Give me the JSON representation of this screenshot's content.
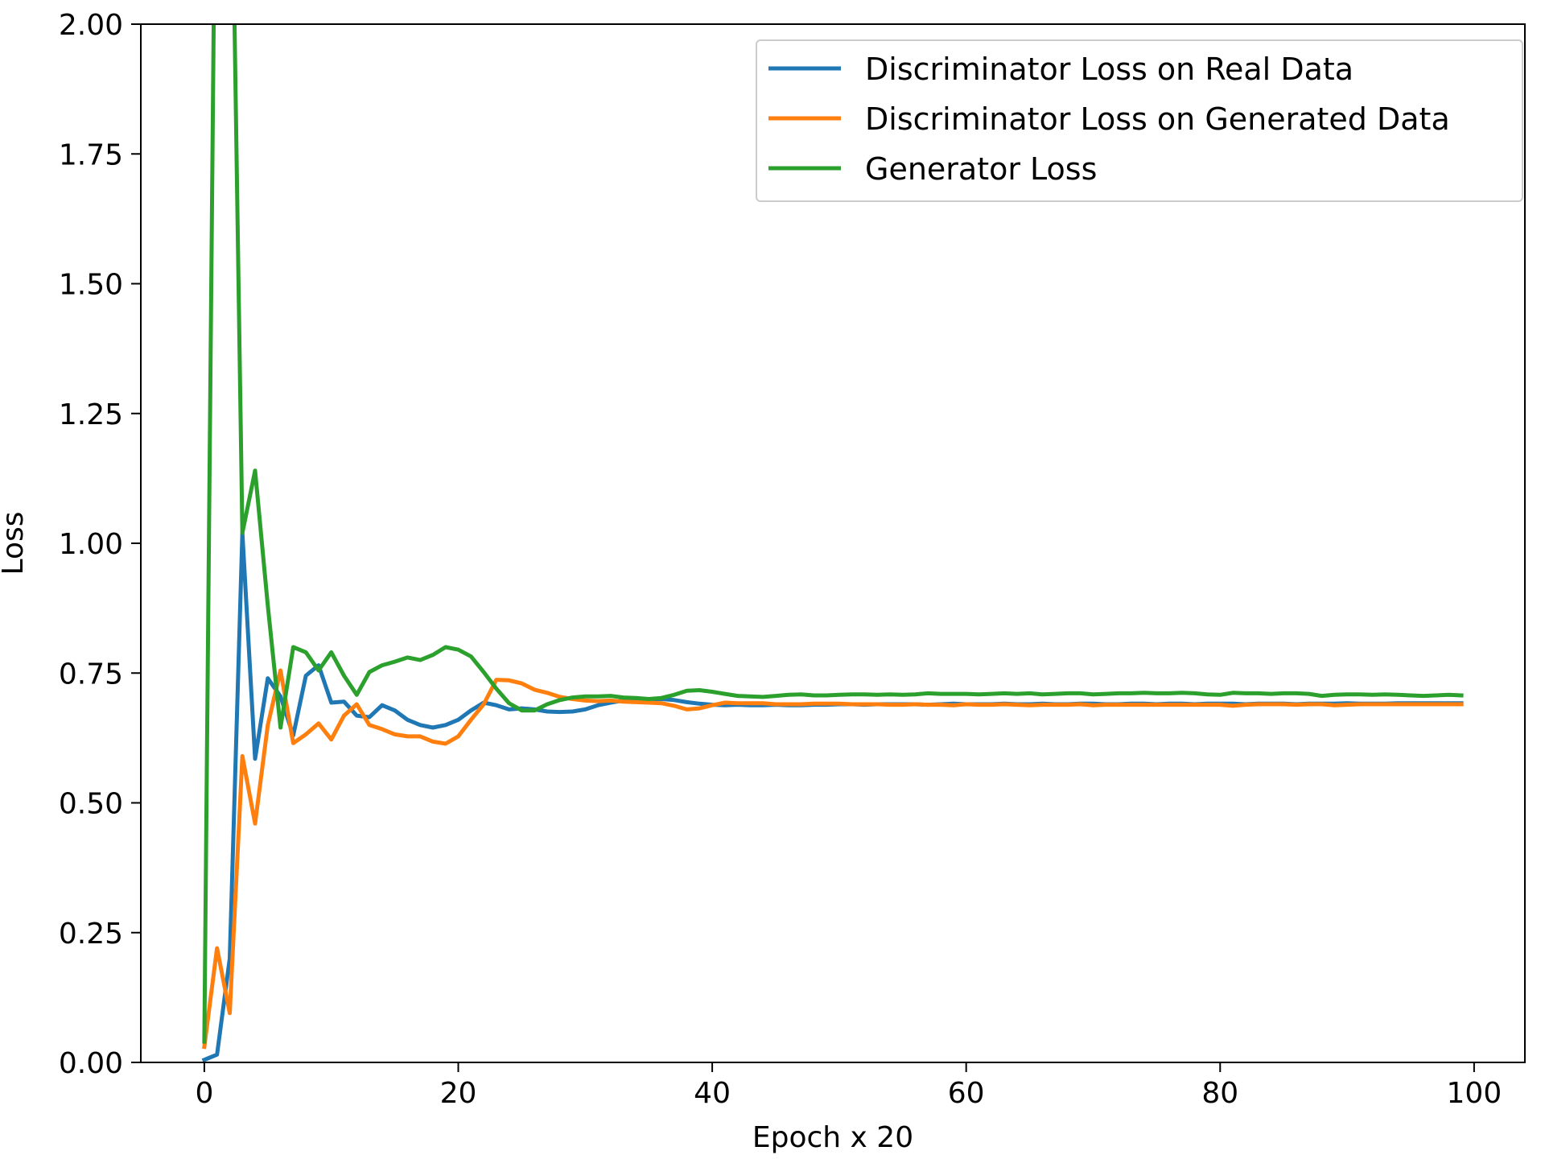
{
  "chart_data": {
    "type": "line",
    "title": "",
    "xlabel": "Epoch x 20",
    "ylabel": "Loss",
    "xlim": [
      -5,
      104
    ],
    "ylim": [
      0,
      2.0
    ],
    "xticks": [
      0,
      20,
      40,
      60,
      80,
      100
    ],
    "xtick_labels": [
      "0",
      "20",
      "40",
      "60",
      "80",
      "100"
    ],
    "yticks": [
      0,
      0.25,
      0.5,
      0.75,
      1.0,
      1.25,
      1.5,
      1.75,
      2.0
    ],
    "ytick_labels": [
      "0.00",
      "0.25",
      "0.50",
      "0.75",
      "1.00",
      "1.25",
      "1.50",
      "1.75",
      "2.00"
    ],
    "grid": false,
    "legend_position": "top-right",
    "series": [
      {
        "name": "Discriminator Loss on Real Data",
        "color": "#1f77b4",
        "x": [
          0,
          1,
          2,
          3,
          4,
          5,
          6,
          7,
          8,
          9,
          10,
          11,
          12,
          13,
          14,
          15,
          16,
          17,
          18,
          19,
          20,
          21,
          22,
          23,
          24,
          25,
          26,
          27,
          28,
          29,
          30,
          31,
          32,
          33,
          34,
          35,
          36,
          37,
          38,
          39,
          40,
          41,
          42,
          43,
          44,
          45,
          46,
          47,
          48,
          49,
          50,
          51,
          52,
          53,
          54,
          55,
          56,
          57,
          58,
          59,
          60,
          61,
          62,
          63,
          64,
          65,
          66,
          67,
          68,
          69,
          70,
          71,
          72,
          73,
          74,
          75,
          76,
          77,
          78,
          79,
          80,
          81,
          82,
          83,
          84,
          85,
          86,
          87,
          88,
          89,
          90,
          91,
          92,
          93,
          94,
          95,
          96,
          97,
          98,
          99
        ],
        "values": [
          0.005,
          0.015,
          0.2,
          1.02,
          0.585,
          0.74,
          0.705,
          0.63,
          0.745,
          0.765,
          0.693,
          0.695,
          0.668,
          0.665,
          0.688,
          0.678,
          0.66,
          0.65,
          0.645,
          0.65,
          0.66,
          0.678,
          0.693,
          0.688,
          0.68,
          0.682,
          0.68,
          0.676,
          0.675,
          0.676,
          0.68,
          0.688,
          0.693,
          0.697,
          0.698,
          0.699,
          0.7,
          0.698,
          0.694,
          0.691,
          0.689,
          0.688,
          0.689,
          0.688,
          0.688,
          0.689,
          0.688,
          0.688,
          0.689,
          0.689,
          0.69,
          0.69,
          0.689,
          0.69,
          0.69,
          0.69,
          0.69,
          0.689,
          0.69,
          0.691,
          0.69,
          0.69,
          0.69,
          0.691,
          0.69,
          0.69,
          0.691,
          0.69,
          0.69,
          0.691,
          0.691,
          0.69,
          0.69,
          0.691,
          0.691,
          0.69,
          0.691,
          0.691,
          0.69,
          0.691,
          0.691,
          0.691,
          0.69,
          0.691,
          0.691,
          0.691,
          0.69,
          0.691,
          0.691,
          0.691,
          0.692,
          0.691,
          0.691,
          0.691,
          0.692,
          0.692,
          0.692,
          0.692,
          0.692,
          0.692
        ]
      },
      {
        "name": "Discriminator Loss on Generated Data",
        "color": "#ff7f0e",
        "x": [
          0,
          1,
          2,
          3,
          4,
          5,
          6,
          7,
          8,
          9,
          10,
          11,
          12,
          13,
          14,
          15,
          16,
          17,
          18,
          19,
          20,
          21,
          22,
          23,
          24,
          25,
          26,
          27,
          28,
          29,
          30,
          31,
          32,
          33,
          34,
          35,
          36,
          37,
          38,
          39,
          40,
          41,
          42,
          43,
          44,
          45,
          46,
          47,
          48,
          49,
          50,
          51,
          52,
          53,
          54,
          55,
          56,
          57,
          58,
          59,
          60,
          61,
          62,
          63,
          64,
          65,
          66,
          67,
          68,
          69,
          70,
          71,
          72,
          73,
          74,
          75,
          76,
          77,
          78,
          79,
          80,
          81,
          82,
          83,
          84,
          85,
          86,
          87,
          88,
          89,
          90,
          91,
          92,
          93,
          94,
          95,
          96,
          97,
          98,
          99
        ],
        "values": [
          0.03,
          0.22,
          0.095,
          0.59,
          0.46,
          0.65,
          0.755,
          0.615,
          0.632,
          0.653,
          0.622,
          0.668,
          0.69,
          0.65,
          0.642,
          0.632,
          0.628,
          0.628,
          0.618,
          0.614,
          0.628,
          0.66,
          0.69,
          0.737,
          0.736,
          0.73,
          0.718,
          0.712,
          0.704,
          0.7,
          0.697,
          0.696,
          0.697,
          0.695,
          0.694,
          0.693,
          0.692,
          0.687,
          0.68,
          0.682,
          0.688,
          0.693,
          0.692,
          0.692,
          0.692,
          0.69,
          0.69,
          0.69,
          0.691,
          0.691,
          0.691,
          0.69,
          0.69,
          0.69,
          0.689,
          0.689,
          0.69,
          0.689,
          0.689,
          0.688,
          0.69,
          0.689,
          0.689,
          0.69,
          0.689,
          0.688,
          0.689,
          0.689,
          0.689,
          0.69,
          0.688,
          0.689,
          0.689,
          0.689,
          0.689,
          0.689,
          0.689,
          0.689,
          0.689,
          0.689,
          0.689,
          0.687,
          0.689,
          0.69,
          0.69,
          0.69,
          0.689,
          0.69,
          0.69,
          0.688,
          0.689,
          0.69,
          0.69,
          0.69,
          0.69,
          0.69,
          0.69,
          0.69,
          0.69,
          0.69
        ]
      },
      {
        "name": "Generator Loss",
        "color": "#2ca02c",
        "x": [
          0,
          1,
          2,
          3,
          4,
          5,
          6,
          7,
          8,
          9,
          10,
          11,
          12,
          13,
          14,
          15,
          16,
          17,
          18,
          19,
          20,
          21,
          22,
          23,
          24,
          25,
          26,
          27,
          28,
          29,
          30,
          31,
          32,
          33,
          34,
          35,
          36,
          37,
          38,
          39,
          40,
          41,
          42,
          43,
          44,
          45,
          46,
          47,
          48,
          49,
          50,
          51,
          52,
          53,
          54,
          55,
          56,
          57,
          58,
          59,
          60,
          61,
          62,
          63,
          64,
          65,
          66,
          67,
          68,
          69,
          70,
          71,
          72,
          73,
          74,
          75,
          76,
          77,
          78,
          79,
          80,
          81,
          82,
          83,
          84,
          85,
          86,
          87,
          88,
          89,
          90,
          91,
          92,
          93,
          94,
          95,
          96,
          97,
          98,
          99
        ],
        "values": [
          0.04,
          2.7,
          2.6,
          1.02,
          1.14,
          0.88,
          0.645,
          0.8,
          0.79,
          0.755,
          0.79,
          0.745,
          0.708,
          0.752,
          0.765,
          0.772,
          0.78,
          0.775,
          0.785,
          0.8,
          0.795,
          0.782,
          0.752,
          0.72,
          0.692,
          0.678,
          0.678,
          0.69,
          0.698,
          0.703,
          0.705,
          0.705,
          0.706,
          0.703,
          0.702,
          0.7,
          0.702,
          0.708,
          0.716,
          0.717,
          0.714,
          0.71,
          0.706,
          0.705,
          0.704,
          0.706,
          0.708,
          0.709,
          0.707,
          0.707,
          0.708,
          0.709,
          0.709,
          0.708,
          0.709,
          0.708,
          0.709,
          0.711,
          0.71,
          0.71,
          0.71,
          0.709,
          0.71,
          0.711,
          0.71,
          0.711,
          0.709,
          0.71,
          0.711,
          0.711,
          0.709,
          0.71,
          0.711,
          0.711,
          0.712,
          0.711,
          0.711,
          0.712,
          0.711,
          0.709,
          0.708,
          0.712,
          0.711,
          0.711,
          0.71,
          0.711,
          0.711,
          0.71,
          0.706,
          0.708,
          0.709,
          0.709,
          0.708,
          0.709,
          0.708,
          0.707,
          0.706,
          0.707,
          0.708,
          0.707
        ]
      }
    ]
  }
}
